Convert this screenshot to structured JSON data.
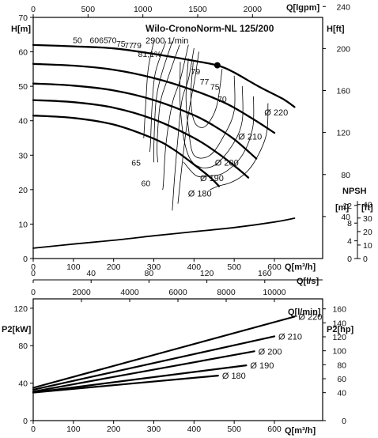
{
  "chart_data": [
    {
      "type": "line",
      "title": "Wilo-CronoNorm-NL 125/200",
      "subtitle": "2900 1/min",
      "xlabel": "Q[m³/h]",
      "ylabel": "H[m]",
      "ylabel_right": "H[ft]",
      "xlabel_top": "Q[lgpm]",
      "xlim": [
        0,
        720
      ],
      "ylim": [
        0,
        70
      ],
      "x_ticks": [
        "0",
        "100",
        "200",
        "300",
        "400",
        "500",
        "600"
      ],
      "y_ticks": [
        "0",
        "10",
        "20",
        "30",
        "40",
        "50",
        "60",
        "70"
      ],
      "top_ticks": [
        "0",
        "500",
        "1000",
        "1500",
        "2000"
      ],
      "right_ticks": [
        "40",
        "80",
        "120",
        "160",
        "200",
        "240"
      ],
      "series": [
        {
          "name": "Ø 220",
          "points": [
            [
              0,
              62.0
            ],
            [
              100,
              61.6
            ],
            [
              200,
              61.0
            ],
            [
              300,
              59.4
            ],
            [
              400,
              57.4
            ],
            [
              460,
              56.0
            ],
            [
              500,
              54.0
            ],
            [
              560,
              50.0
            ],
            [
              620,
              46.4
            ],
            [
              650,
              44.0
            ]
          ]
        },
        {
          "name": "Ø 210",
          "points": [
            [
              0,
              56.5
            ],
            [
              100,
              56.0
            ],
            [
              200,
              54.8
            ],
            [
              300,
              52.4
            ],
            [
              400,
              48.8
            ],
            [
              480,
              45.0
            ],
            [
              540,
              41.0
            ],
            [
              600,
              36.5
            ]
          ]
        },
        {
          "name": "Ø 200",
          "points": [
            [
              0,
              50.8
            ],
            [
              100,
              50.2
            ],
            [
              200,
              48.8
            ],
            [
              300,
              46.0
            ],
            [
              400,
              41.6
            ],
            [
              450,
              38.5
            ],
            [
              500,
              34.6
            ],
            [
              555,
              29.0
            ]
          ]
        },
        {
          "name": "Ø 190",
          "points": [
            [
              0,
              46.0
            ],
            [
              100,
              45.4
            ],
            [
              200,
              43.8
            ],
            [
              300,
              40.4
            ],
            [
              400,
              35.0
            ],
            [
              460,
              30.5
            ],
            [
              510,
              26.0
            ],
            [
              535,
              23.5
            ]
          ]
        },
        {
          "name": "Ø 180",
          "points": [
            [
              0,
              41.5
            ],
            [
              100,
              40.8
            ],
            [
              200,
              38.9
            ],
            [
              300,
              34.8
            ],
            [
              350,
              31.6
            ],
            [
              400,
              27.3
            ],
            [
              440,
              23.6
            ],
            [
              462,
              21.0
            ]
          ]
        }
      ],
      "npsh": {
        "label": "NPSH",
        "unit_m": "[m]",
        "unit_ft": "[ft]",
        "ticks_m": [
          "0",
          "4",
          "8",
          "12"
        ],
        "ticks_ft": [
          "0",
          "10",
          "20",
          "30",
          "40"
        ],
        "points": [
          [
            0,
            3.0
          ],
          [
            100,
            4.2
          ],
          [
            200,
            5.3
          ],
          [
            300,
            6.6
          ],
          [
            400,
            7.8
          ],
          [
            500,
            9.0
          ],
          [
            600,
            10.6
          ],
          [
            650,
            11.7
          ]
        ]
      },
      "efficiency_labels": [
        "50",
        "60",
        "65",
        "70",
        "75",
        "77",
        "79",
        "81,1%",
        "79",
        "77",
        "75",
        "70",
        "65",
        "60"
      ],
      "bep": {
        "x": 458,
        "y": 56.1
      }
    },
    {
      "type": "line",
      "xlabel": "Q[m³/h]",
      "ylabel": "P2[kW]",
      "ylabel_right": "P2[hp]",
      "xlabel_top1": "Q[l/s]",
      "xlabel_top2": "Q[l/min]",
      "xlim": [
        0,
        720
      ],
      "ylim": [
        0,
        130
      ],
      "x_ticks": [
        "0",
        "100",
        "200",
        "300",
        "400",
        "500",
        "600"
      ],
      "y_ticks": [
        "0",
        "40",
        "80",
        "120"
      ],
      "ls_ticks": [
        "0",
        "40",
        "80",
        "120",
        "160"
      ],
      "lmin_ticks": [
        "0",
        "2000",
        "4000",
        "6000",
        "8000",
        "10000"
      ],
      "right_ticks": [
        "0",
        "40",
        "60",
        "80",
        "100",
        "120",
        "140",
        "160"
      ],
      "series": [
        {
          "name": "Ø 220",
          "points": [
            [
              0,
              35
            ],
            [
              650,
              111
            ]
          ]
        },
        {
          "name": "Ø 210",
          "points": [
            [
              0,
              33
            ],
            [
              600,
              90
            ]
          ]
        },
        {
          "name": "Ø 200",
          "points": [
            [
              0,
              31
            ],
            [
              550,
              74
            ]
          ]
        },
        {
          "name": "Ø 190",
          "points": [
            [
              0,
              30
            ],
            [
              530,
              59
            ]
          ]
        },
        {
          "name": "Ø 180",
          "points": [
            [
              0,
              30
            ],
            [
              460,
              48
            ]
          ]
        }
      ]
    }
  ]
}
